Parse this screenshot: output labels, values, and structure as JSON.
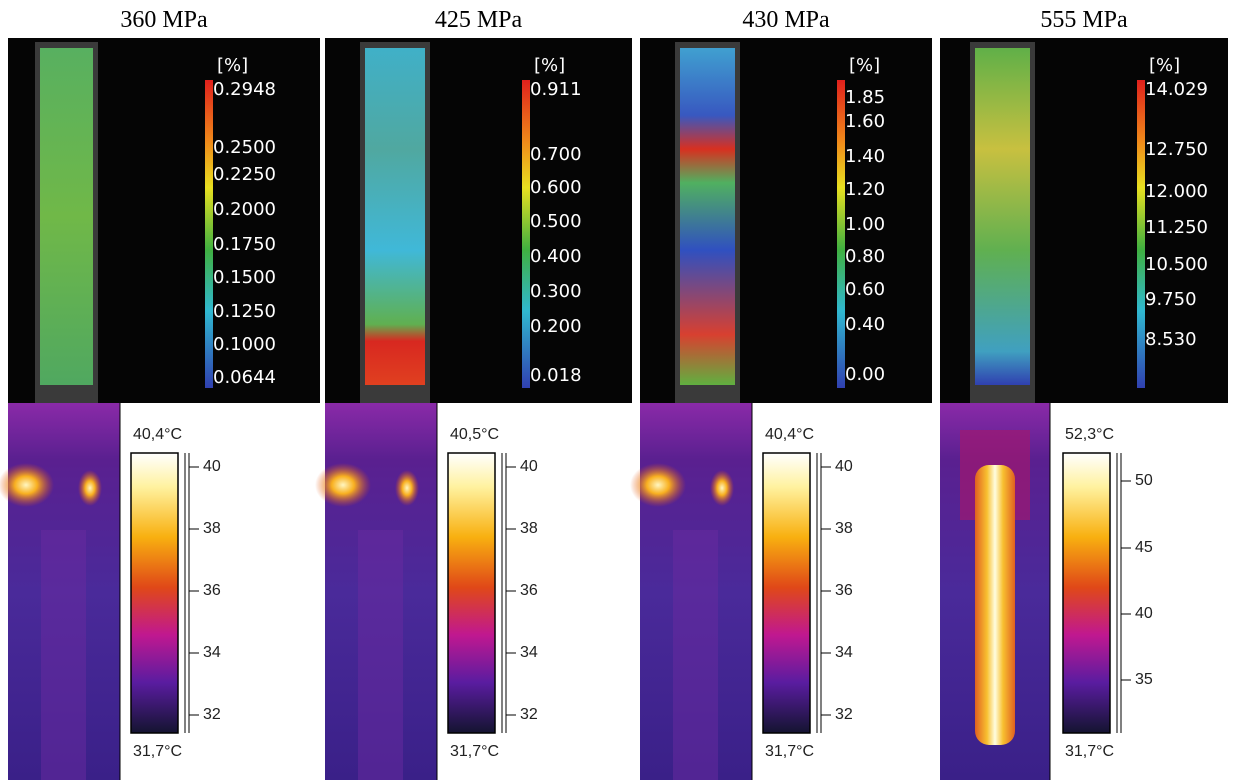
{
  "panels": [
    {
      "title": "360 MPa",
      "strain": {
        "unit": "[%]",
        "ticks": [
          "0.2948",
          "0.2500",
          "0.2250",
          "0.2000",
          "0.1750",
          "0.1500",
          "0.1250",
          "0.1000",
          "0.0644"
        ]
      },
      "thermal": {
        "max": "40,4°C",
        "min": "31,7°C",
        "ticks": [
          "40",
          "38",
          "36",
          "34",
          "32"
        ]
      }
    },
    {
      "title": "425 MPa",
      "strain": {
        "unit": "[%]",
        "ticks": [
          "0.911",
          "0.700",
          "0.600",
          "0.500",
          "0.400",
          "0.300",
          "0.200",
          "0.018"
        ]
      },
      "thermal": {
        "max": "40,5°C",
        "min": "31,7°C",
        "ticks": [
          "40",
          "38",
          "36",
          "34",
          "32"
        ]
      }
    },
    {
      "title": "430 MPa",
      "strain": {
        "unit": "[%]",
        "ticks": [
          "1.85",
          "1.60",
          "1.40",
          "1.20",
          "1.00",
          "0.80",
          "0.60",
          "0.40",
          "0.00"
        ]
      },
      "thermal": {
        "max": "40,4°C",
        "min": "31,7°C",
        "ticks": [
          "40",
          "38",
          "36",
          "34",
          "32"
        ]
      }
    },
    {
      "title": "555 MPa",
      "strain": {
        "unit": "[%]",
        "ticks": [
          "14.029",
          "12.750",
          "12.000",
          "11.250",
          "10.500",
          "9.750",
          "8.530"
        ]
      },
      "thermal": {
        "max": "52,3°C",
        "min": "31,7°C",
        "ticks": [
          "50",
          "45",
          "40",
          "35"
        ]
      }
    }
  ]
}
